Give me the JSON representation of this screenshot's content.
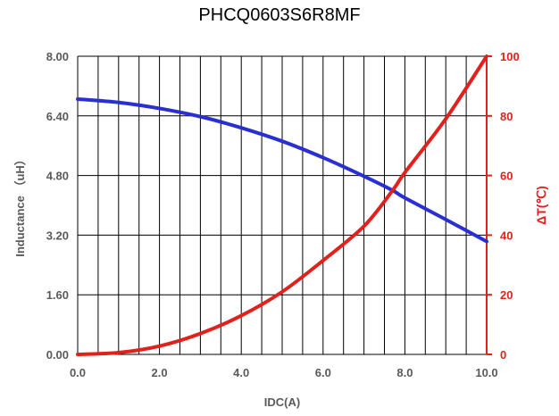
{
  "chart_data": {
    "type": "line",
    "title": "PHCQ0603S6R8MF",
    "xlabel": "IDC(A)",
    "ylabel_left": "Inductance （uH）",
    "ylabel_right": "ΔT(℃)",
    "xlim": [
      0,
      10
    ],
    "ylim_left": [
      0,
      8
    ],
    "ylim_right": [
      0,
      100
    ],
    "x_ticks": [
      "0.0",
      "2.0",
      "4.0",
      "6.0",
      "8.0",
      "10.0"
    ],
    "y_left_ticks": [
      "0.00",
      "1.60",
      "3.20",
      "4.80",
      "6.40",
      "8.00"
    ],
    "y_right_ticks": [
      "0",
      "20",
      "40",
      "60",
      "80",
      "100"
    ],
    "grid": true,
    "vertical_gridlines": 20,
    "horizontal_gridlines": 5,
    "series": [
      {
        "axis": "left",
        "color": "#2a2fd2",
        "x": [
          0,
          1,
          2,
          3,
          4,
          5,
          6,
          7,
          7.7,
          8,
          9,
          10
        ],
        "y": [
          6.85,
          6.76,
          6.6,
          6.38,
          6.08,
          5.72,
          5.28,
          4.78,
          4.4,
          4.2,
          3.62,
          3.03
        ]
      },
      {
        "axis": "right",
        "color": "#e0211c",
        "x": [
          0,
          1,
          2,
          3,
          4,
          5,
          6,
          7,
          7.7,
          8,
          9,
          10
        ],
        "y": [
          0,
          0.6,
          2.8,
          7,
          13,
          21,
          31.5,
          43,
          55,
          61,
          79,
          100
        ]
      }
    ]
  }
}
